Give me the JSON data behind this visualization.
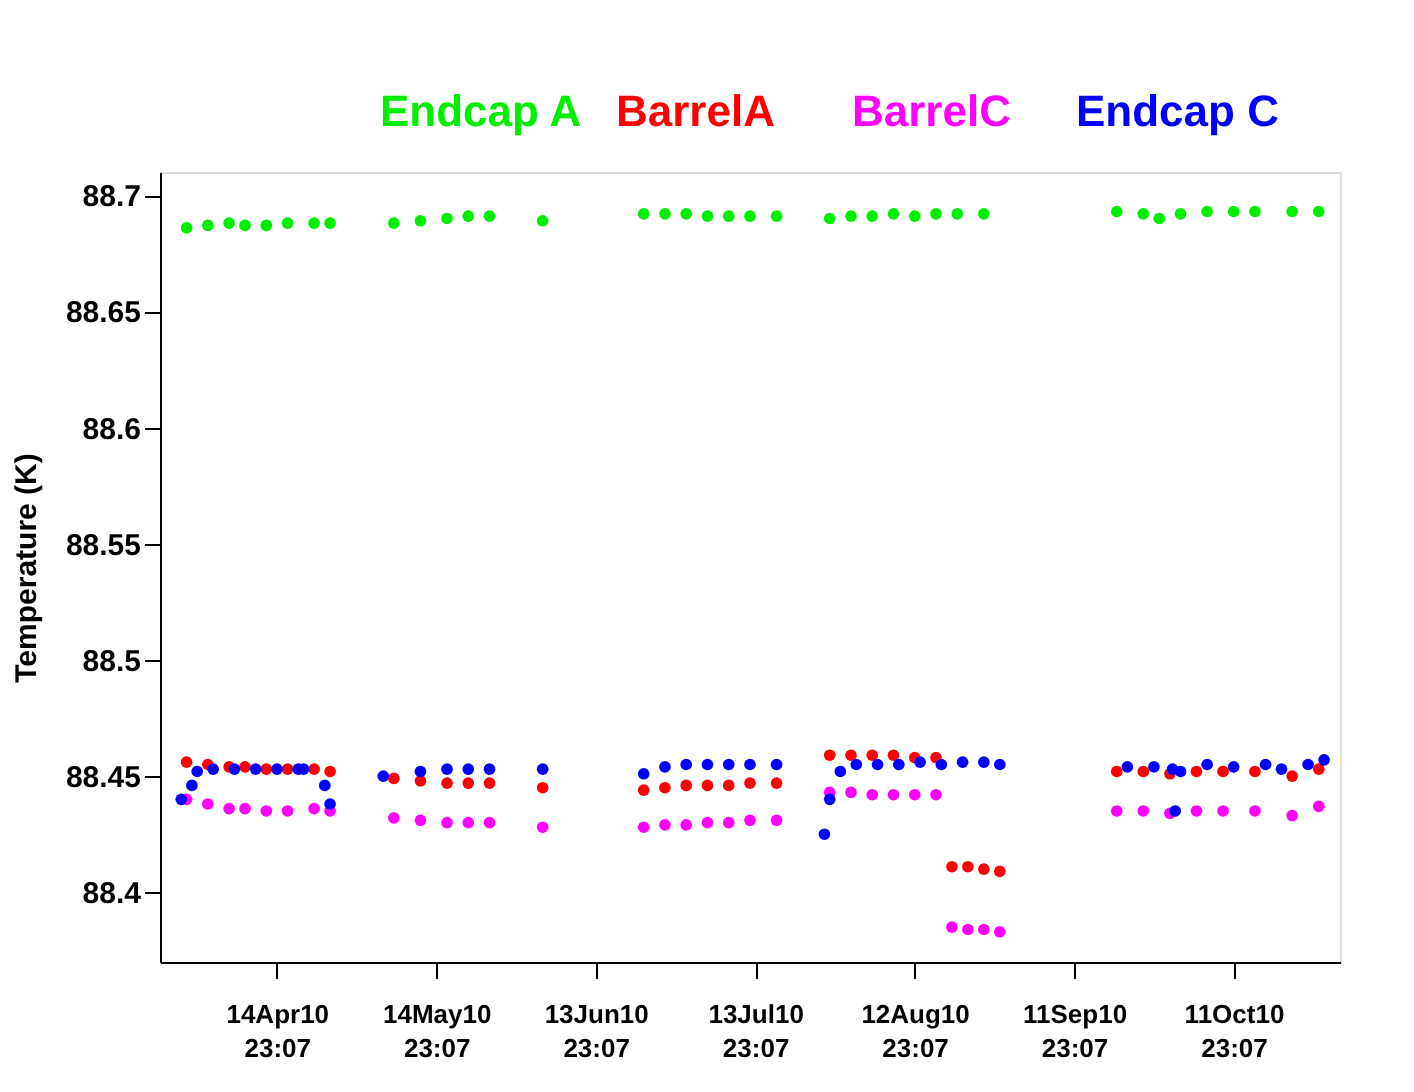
{
  "chart_data": {
    "type": "scatter",
    "ylabel": "Temperature (K)",
    "marker": "circle",
    "grid": false,
    "legend": "top",
    "xlim": [
      "2010-03-24T00:00",
      "2010-11-01T00:00"
    ],
    "xticks": [
      {
        "value": "2010-04-14T23:07",
        "label": "14Apr10 23:07"
      },
      {
        "value": "2010-05-14T23:07",
        "label": "14May10 23:07"
      },
      {
        "value": "2010-06-13T23:07",
        "label": "13Jun10 23:07"
      },
      {
        "value": "2010-07-13T23:07",
        "label": "13Jul10 23:07"
      },
      {
        "value": "2010-08-12T23:07",
        "label": "12Aug10 23:07"
      },
      {
        "value": "2010-09-11T23:07",
        "label": "11Sep10 23:07"
      },
      {
        "value": "2010-10-11T23:07",
        "label": "11Oct10 23:07"
      }
    ],
    "ylim": [
      88.37,
      88.71
    ],
    "yticks": [
      88.4,
      88.45,
      88.5,
      88.55,
      88.6,
      88.65,
      88.7
    ],
    "series": [
      {
        "name": "Endcap A",
        "color": "#00ee00",
        "x": [
          "2010-03-29",
          "2010-04-02",
          "2010-04-06",
          "2010-04-09",
          "2010-04-13",
          "2010-04-17",
          "2010-04-22",
          "2010-04-25",
          "2010-05-07",
          "2010-05-12",
          "2010-05-17",
          "2010-05-21",
          "2010-05-25",
          "2010-06-04",
          "2010-06-23",
          "2010-06-27",
          "2010-07-01",
          "2010-07-05",
          "2010-07-09",
          "2010-07-13",
          "2010-07-18",
          "2010-07-28",
          "2010-08-01",
          "2010-08-05",
          "2010-08-09",
          "2010-08-13",
          "2010-08-17",
          "2010-08-21",
          "2010-08-26",
          "2010-09-20",
          "2010-09-25",
          "2010-09-28",
          "2010-10-02",
          "2010-10-07",
          "2010-10-12",
          "2010-10-16",
          "2010-10-23",
          "2010-10-28"
        ],
        "values": [
          88.686,
          88.687,
          88.688,
          88.687,
          88.687,
          88.688,
          88.688,
          88.688,
          88.688,
          88.689,
          88.69,
          88.691,
          88.691,
          88.689,
          88.692,
          88.692,
          88.692,
          88.691,
          88.691,
          88.691,
          88.691,
          88.69,
          88.691,
          88.691,
          88.692,
          88.691,
          88.692,
          88.692,
          88.692,
          88.693,
          88.692,
          88.69,
          88.692,
          88.693,
          88.693,
          88.693,
          88.693,
          88.693
        ]
      },
      {
        "name": "BarrelA",
        "color": "#ff0000",
        "x": [
          "2010-03-29",
          "2010-04-02",
          "2010-04-06",
          "2010-04-09",
          "2010-04-13",
          "2010-04-17",
          "2010-04-22",
          "2010-04-25",
          "2010-05-07",
          "2010-05-12",
          "2010-05-17",
          "2010-05-21",
          "2010-05-25",
          "2010-06-04",
          "2010-06-23",
          "2010-06-27",
          "2010-07-01",
          "2010-07-05",
          "2010-07-09",
          "2010-07-13",
          "2010-07-18",
          "2010-07-28",
          "2010-08-01",
          "2010-08-05",
          "2010-08-09",
          "2010-08-13",
          "2010-08-17",
          "2010-08-20",
          "2010-08-23",
          "2010-08-26",
          "2010-08-29",
          "2010-09-20",
          "2010-09-25",
          "2010-09-30",
          "2010-10-05",
          "2010-10-10",
          "2010-10-16",
          "2010-10-23",
          "2010-10-28"
        ],
        "values": [
          88.456,
          88.455,
          88.454,
          88.454,
          88.453,
          88.453,
          88.453,
          88.452,
          88.449,
          88.448,
          88.447,
          88.447,
          88.447,
          88.445,
          88.444,
          88.445,
          88.446,
          88.446,
          88.446,
          88.447,
          88.447,
          88.459,
          88.459,
          88.459,
          88.459,
          88.458,
          88.458,
          88.411,
          88.411,
          88.41,
          88.409,
          88.452,
          88.452,
          88.451,
          88.452,
          88.452,
          88.452,
          88.45,
          88.453
        ]
      },
      {
        "name": "BarrelC",
        "color": "#ff00ff",
        "x": [
          "2010-03-29",
          "2010-04-02",
          "2010-04-06",
          "2010-04-09",
          "2010-04-13",
          "2010-04-17",
          "2010-04-22",
          "2010-04-25",
          "2010-05-07",
          "2010-05-12",
          "2010-05-17",
          "2010-05-21",
          "2010-05-25",
          "2010-06-04",
          "2010-06-23",
          "2010-06-27",
          "2010-07-01",
          "2010-07-05",
          "2010-07-09",
          "2010-07-13",
          "2010-07-18",
          "2010-07-28",
          "2010-08-01",
          "2010-08-05",
          "2010-08-09",
          "2010-08-13",
          "2010-08-17",
          "2010-08-20",
          "2010-08-23",
          "2010-08-26",
          "2010-08-29",
          "2010-09-20",
          "2010-09-25",
          "2010-09-30",
          "2010-10-05",
          "2010-10-10",
          "2010-10-16",
          "2010-10-23",
          "2010-10-28"
        ],
        "values": [
          88.44,
          88.438,
          88.436,
          88.436,
          88.435,
          88.435,
          88.436,
          88.435,
          88.432,
          88.431,
          88.43,
          88.43,
          88.43,
          88.428,
          88.428,
          88.429,
          88.429,
          88.43,
          88.43,
          88.431,
          88.431,
          88.443,
          88.443,
          88.442,
          88.442,
          88.442,
          88.442,
          88.385,
          88.384,
          88.384,
          88.383,
          88.435,
          88.435,
          88.434,
          88.435,
          88.435,
          88.435,
          88.433,
          88.437
        ]
      },
      {
        "name": "Endcap C",
        "color": "#0000ff",
        "x": [
          "2010-03-28",
          "2010-03-30",
          "2010-03-31",
          "2010-04-03",
          "2010-04-07",
          "2010-04-11",
          "2010-04-15",
          "2010-04-19",
          "2010-04-20",
          "2010-04-24",
          "2010-04-25",
          "2010-05-05",
          "2010-05-12",
          "2010-05-17",
          "2010-05-21",
          "2010-05-25",
          "2010-06-04",
          "2010-06-23",
          "2010-06-27",
          "2010-07-01",
          "2010-07-05",
          "2010-07-09",
          "2010-07-13",
          "2010-07-18",
          "2010-07-27",
          "2010-07-28",
          "2010-07-30",
          "2010-08-02",
          "2010-08-06",
          "2010-08-10",
          "2010-08-14",
          "2010-08-18",
          "2010-08-22",
          "2010-08-26",
          "2010-08-29",
          "2010-09-22",
          "2010-09-27",
          "2010-09-30T12:00",
          "2010-10-01",
          "2010-10-02",
          "2010-10-07",
          "2010-10-12",
          "2010-10-18",
          "2010-10-21",
          "2010-10-26",
          "2010-10-29"
        ],
        "values": [
          88.44,
          88.446,
          88.452,
          88.453,
          88.453,
          88.453,
          88.453,
          88.453,
          88.453,
          88.446,
          88.438,
          88.45,
          88.452,
          88.453,
          88.453,
          88.453,
          88.453,
          88.451,
          88.454,
          88.455,
          88.455,
          88.455,
          88.455,
          88.455,
          88.425,
          88.44,
          88.452,
          88.455,
          88.455,
          88.455,
          88.456,
          88.455,
          88.456,
          88.456,
          88.455,
          88.454,
          88.454,
          88.453,
          88.435,
          88.452,
          88.455,
          88.454,
          88.455,
          88.453,
          88.455,
          88.457
        ]
      }
    ]
  }
}
